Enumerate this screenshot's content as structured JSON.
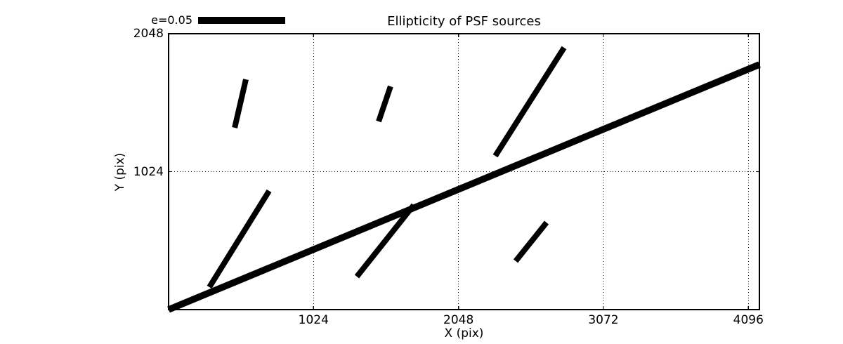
{
  "figure": {
    "title": "Ellipticity of PSF sources",
    "legend_label": "e=0.05"
  },
  "chart_data": {
    "type": "line-segments",
    "title": "Ellipticity of PSF sources",
    "xlabel": "X (pix)",
    "ylabel": "Y (pix)",
    "xlim": [
      0,
      4174
    ],
    "ylim": [
      0,
      2048
    ],
    "xticks": [
      1024,
      2048,
      3072,
      4096
    ],
    "yticks": [
      1024,
      2048
    ],
    "grid": "dotted",
    "legend": {
      "label": "e=0.05",
      "ellipticity_scale": 0.05,
      "position": "top-left"
    },
    "line_color": "#000000",
    "grid_color": "#000000",
    "background": "#ffffff",
    "segments": [
      {
        "x1": 288,
        "y1": 167,
        "x2": 710,
        "y2": 881,
        "lw": 8
      },
      {
        "x1": 467,
        "y1": 1350,
        "x2": 546,
        "y2": 1709,
        "lw": 8
      },
      {
        "x1": 1330,
        "y1": 245,
        "x2": 1732,
        "y2": 776,
        "lw": 8
      },
      {
        "x1": 1484,
        "y1": 1397,
        "x2": 1568,
        "y2": 1657,
        "lw": 8
      },
      {
        "x1": 2308,
        "y1": 1141,
        "x2": 2794,
        "y2": 1944,
        "lw": 8
      },
      {
        "x1": 2452,
        "y1": 360,
        "x2": 2670,
        "y2": 646,
        "lw": 8
      },
      {
        "x1": 0,
        "y1": 0,
        "x2": 4174,
        "y2": 1819,
        "lw": 9.5
      }
    ]
  }
}
